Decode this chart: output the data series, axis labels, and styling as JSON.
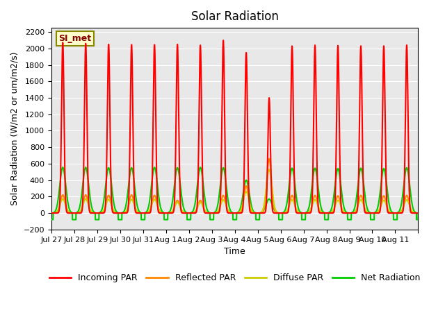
{
  "title": "Solar Radiation",
  "ylabel": "Solar Radiation (W/m2 or um/m2/s)",
  "xlabel": "Time",
  "ylim": [
    -200,
    2250
  ],
  "yticks": [
    -200,
    0,
    200,
    400,
    600,
    800,
    1000,
    1200,
    1400,
    1600,
    1800,
    2000,
    2200
  ],
  "xtick_positions": [
    0,
    1,
    2,
    3,
    4,
    5,
    6,
    7,
    8,
    9,
    10,
    11,
    12,
    13,
    14,
    15,
    16
  ],
  "xtick_labels": [
    "Jul 27",
    "Jul 28",
    "Jul 29",
    "Jul 30",
    "Jul 31",
    "Aug 1",
    "Aug 2",
    "Aug 3",
    "Aug 4",
    "Aug 5",
    "Aug 6",
    "Aug 7",
    "Aug 8",
    "Aug 9",
    "Aug 10",
    "Aug 11",
    ""
  ],
  "station_label": "SI_met",
  "background_color": "#e8e8e8",
  "line_colors": {
    "incoming": "#ff0000",
    "reflected": "#ff8800",
    "diffuse": "#cccc00",
    "net": "#00cc00"
  },
  "line_widths": {
    "incoming": 1.5,
    "reflected": 1.5,
    "diffuse": 1.5,
    "net": 1.5
  },
  "legend_labels": [
    "Incoming PAR",
    "Reflected PAR",
    "Diffuse PAR",
    "Net Radiation"
  ],
  "n_days": 16,
  "incoming_peaks": [
    2070,
    2060,
    2050,
    2045,
    2045,
    2050,
    2040,
    2100,
    1950,
    1400,
    2030,
    2040,
    2035,
    2030,
    2030,
    2040
  ],
  "reflected_peaks": [
    220,
    220,
    215,
    220,
    215,
    155,
    155,
    215,
    330,
    660,
    215,
    215,
    210,
    215,
    210,
    215
  ],
  "diffuse_peaks": [
    170,
    170,
    165,
    165,
    165,
    130,
    130,
    160,
    260,
    530,
    160,
    160,
    155,
    160,
    155,
    160
  ],
  "net_peaks": [
    555,
    555,
    550,
    550,
    555,
    550,
    555,
    550,
    400,
    170,
    545,
    545,
    540,
    545,
    540,
    550
  ],
  "net_night": -80,
  "figsize": [
    6.4,
    4.8
  ],
  "dpi": 100
}
